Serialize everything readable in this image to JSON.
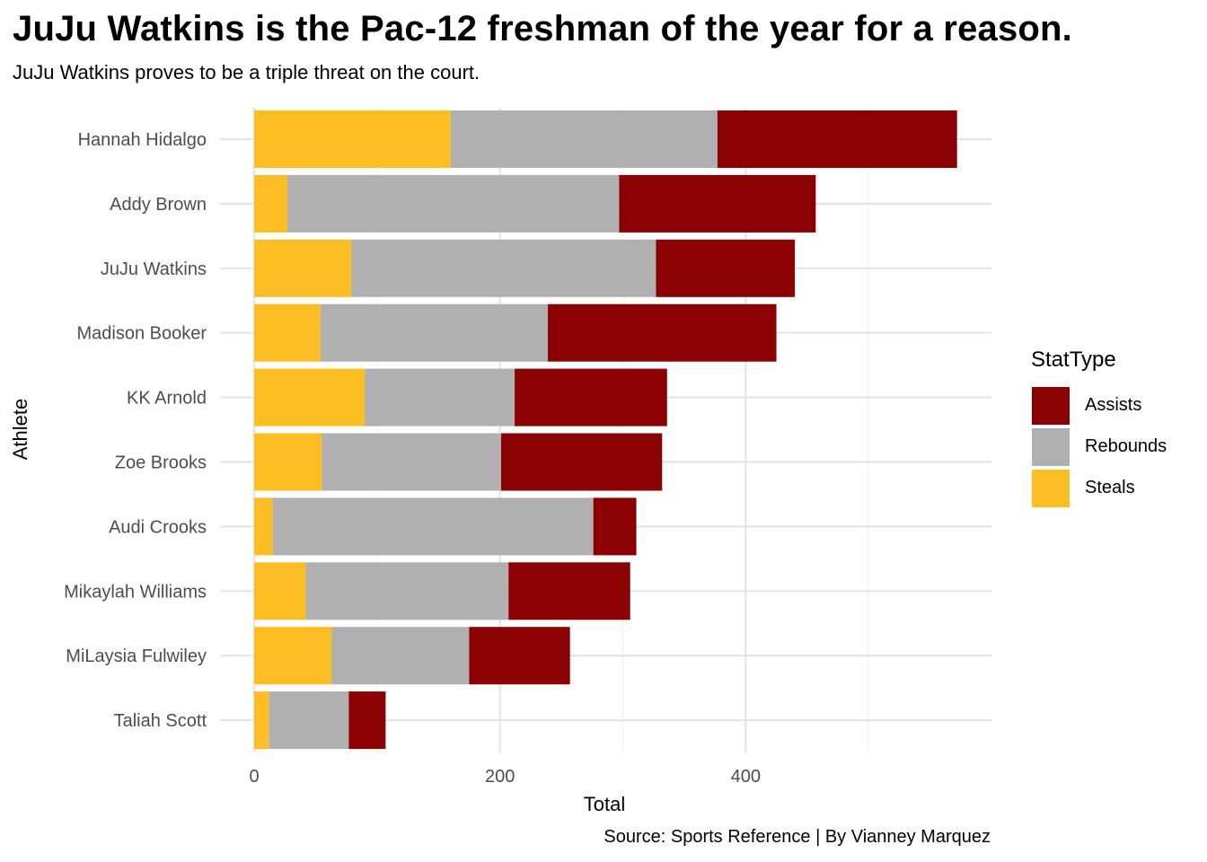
{
  "title": "JuJu Watkins is the Pac-12 freshman of the year for a reason.",
  "subtitle": "JuJu Watkins proves to be a triple threat on the court.",
  "caption": "Source: Sports Reference | By Vianney Marquez",
  "legend": {
    "title": "StatType",
    "items": [
      {
        "label": "Assists",
        "color": "#8B0000"
      },
      {
        "label": "Rebounds",
        "color": "#B0B0B0"
      },
      {
        "label": "Steals",
        "color": "#FDBD24"
      }
    ]
  },
  "chart_data": {
    "type": "bar",
    "orientation": "horizontal",
    "stacked": true,
    "categories": [
      "Hannah Hidalgo",
      "Addy Brown",
      "JuJu Watkins",
      "Madison Booker",
      "KK Arnold",
      "Zoe Brooks",
      "Audi Crooks",
      "Mikaylah Williams",
      "MiLaysia Fulwiley",
      "Taliah Scott"
    ],
    "series": [
      {
        "name": "Steals",
        "color": "#FDBD24",
        "values": [
          160,
          27,
          79,
          54,
          90,
          55,
          15,
          42,
          63,
          12
        ]
      },
      {
        "name": "Rebounds",
        "color": "#B0B0B0",
        "values": [
          217,
          270,
          248,
          185,
          122,
          146,
          261,
          165,
          112,
          65
        ]
      },
      {
        "name": "Assists",
        "color": "#8B0000",
        "values": [
          195,
          160,
          113,
          186,
          124,
          131,
          35,
          99,
          82,
          30
        ]
      }
    ],
    "xlabel": "Total",
    "ylabel": "Athlete",
    "xticks": [
      0,
      200,
      400
    ],
    "xlim": [
      0,
      600
    ],
    "grid": true,
    "legend_position": "right"
  }
}
